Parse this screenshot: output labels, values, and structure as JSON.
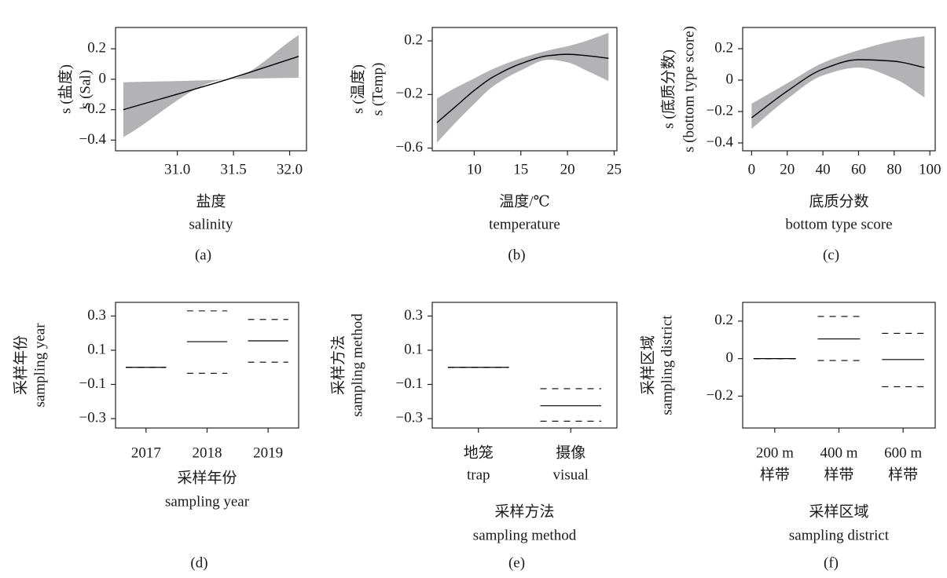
{
  "chart_data": [
    {
      "type": "line",
      "caption": "(a)",
      "ylabel": [
        "s (盐度)",
        "s (Sal)"
      ],
      "xlabel": [
        "盐度",
        "salinity"
      ],
      "x": [
        30.52,
        31.45,
        32.08
      ],
      "values": [
        -0.2,
        0,
        0.15
      ],
      "lower": [
        -0.38,
        0,
        0.01
      ],
      "upper": [
        -0.02,
        0,
        0.29
      ],
      "color": "#000000",
      "band_color": "#b3b3b5",
      "xlim": [
        30.45,
        32.15
      ],
      "xticks": [
        {
          "value": 31,
          "label": "31.0"
        },
        31.5,
        {
          "value": 32,
          "label": "32.0"
        }
      ],
      "ylim": [
        -0.47,
        0.34
      ],
      "yticks": [
        0.2,
        0,
        {
          "value": -0.2,
          "label": "−0.2"
        },
        {
          "value": -0.4,
          "label": "−0.4"
        }
      ]
    },
    {
      "type": "line",
      "caption": "(b)",
      "ylabel": [
        "s (温度)",
        "s (Temp)"
      ],
      "xlabel": [
        "温度/℃",
        "temperature"
      ],
      "x": [
        6,
        8,
        10,
        12,
        15,
        18,
        20,
        22,
        24.4
      ],
      "values": [
        -0.41,
        -0.29,
        -0.17,
        -0.07,
        0.03,
        0.09,
        0.1,
        0.09,
        0.07
      ],
      "lower": [
        -0.56,
        -0.41,
        -0.27,
        -0.14,
        -0.02,
        0.06,
        0.04,
        -0.02,
        -0.1
      ],
      "upper": [
        -0.23,
        -0.15,
        -0.08,
        -0.01,
        0.07,
        0.13,
        0.16,
        0.2,
        0.26
      ],
      "color": "#000000",
      "band_color": "#b3b3b5",
      "xlim": [
        5.5,
        25.3
      ],
      "xticks": [
        10,
        15,
        20,
        25
      ],
      "ylim": [
        -0.62,
        0.3
      ],
      "yticks": [
        0.2,
        {
          "value": -0.2,
          "label": "−0.2"
        },
        {
          "value": -0.6,
          "label": "−0.6"
        }
      ]
    },
    {
      "type": "line",
      "caption": "(c)",
      "ylabel": [
        "s (底质分数)",
        "s (bottom type score)"
      ],
      "xlabel": [
        "底质分数",
        "bottom type score"
      ],
      "x": [
        0,
        20,
        40,
        60,
        80,
        97
      ],
      "values": [
        -0.24,
        -0.07,
        0.07,
        0.13,
        0.12,
        0.08
      ],
      "lower": [
        -0.31,
        -0.12,
        0.03,
        0.08,
        0.01,
        -0.11
      ],
      "upper": [
        -0.15,
        -0.02,
        0.11,
        0.19,
        0.25,
        0.28
      ],
      "color": "#000000",
      "band_color": "#b3b3b5",
      "xlim": [
        -5,
        103
      ],
      "xticks": [
        0,
        20,
        40,
        60,
        80,
        100
      ],
      "ylim": [
        -0.45,
        0.335
      ],
      "yticks": [
        0.2,
        0,
        {
          "value": -0.2,
          "label": "−0.2"
        },
        {
          "value": -0.4,
          "label": "−0.4"
        }
      ]
    },
    {
      "type": "factor",
      "caption": "(d)",
      "ylabel": [
        "采样年份",
        "sampling year"
      ],
      "xlabel": [
        "采样年份",
        "sampling year"
      ],
      "categories": [
        "2017",
        "2018",
        "2019"
      ],
      "values": [
        0,
        0.15,
        0.155
      ],
      "upper": [
        0,
        0.33,
        0.28
      ],
      "lower": [
        0,
        -0.035,
        0.03
      ],
      "color": "#000000",
      "ylim": [
        -0.355,
        0.38
      ],
      "yticks": [
        0.3,
        0.1,
        {
          "value": -0.1,
          "label": "−0.1"
        },
        {
          "value": -0.3,
          "label": "−0.3"
        }
      ]
    },
    {
      "type": "factor",
      "caption": "(e)",
      "ylabel": [
        "采样方法",
        "sampling method"
      ],
      "xlabel": [
        "采样方法",
        "sampling method"
      ],
      "categories": [
        [
          "地笼",
          "trap"
        ],
        [
          "摄像",
          "visual"
        ]
      ],
      "values": [
        0,
        -0.225
      ],
      "upper": [
        0,
        -0.125
      ],
      "lower": [
        0,
        -0.315
      ],
      "color": "#000000",
      "ylim": [
        -0.355,
        0.38
      ],
      "yticks": [
        0.3,
        0.1,
        {
          "value": -0.1,
          "label": "−0.1"
        },
        {
          "value": -0.3,
          "label": "−0.3"
        }
      ]
    },
    {
      "type": "factor",
      "caption": "(f)",
      "ylabel": [
        "采样区域",
        "sampling district"
      ],
      "xlabel": [
        "采样区域",
        "sampling district"
      ],
      "categories": [
        [
          "200 m",
          "样带"
        ],
        [
          "400 m",
          "样带"
        ],
        [
          "600 m",
          "样带"
        ]
      ],
      "values": [
        0,
        0.105,
        -0.005
      ],
      "upper": [
        0,
        0.225,
        0.135
      ],
      "lower": [
        0,
        -0.01,
        -0.15
      ],
      "color": "#000000",
      "ylim": [
        -0.37,
        0.3
      ],
      "yticks": [
        0.2,
        0,
        {
          "value": -0.2,
          "label": "−0.2"
        }
      ]
    }
  ]
}
